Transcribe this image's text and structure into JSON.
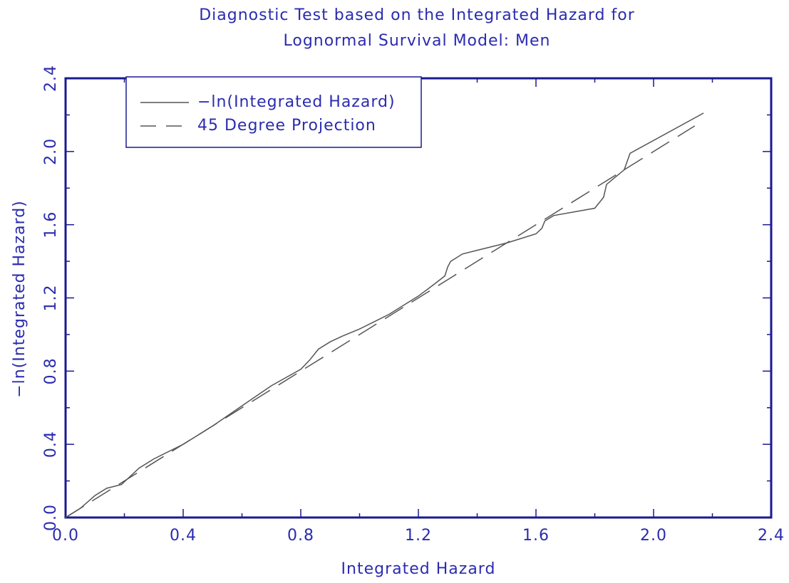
{
  "chart_data": {
    "type": "line",
    "title": "Diagnostic Test based on the Integrated Hazard for",
    "subtitle": "Lognormal Survival Model: Men",
    "x_label": "Integrated Hazard",
    "y_label": "−ln(Integrated Hazard)",
    "xlim": [
      0,
      2.4
    ],
    "ylim": [
      0,
      2.4
    ],
    "xticks": [
      {
        "value": 0,
        "label": "0.0"
      },
      {
        "value": 0.4,
        "label": "0.4"
      },
      {
        "value": 0.8,
        "label": "0.8"
      },
      {
        "value": 1.2,
        "label": "1.2"
      },
      {
        "value": 1.6,
        "label": "1.6"
      },
      {
        "value": 2.0,
        "label": "2.0"
      },
      {
        "value": 2.4,
        "label": "2.4"
      }
    ],
    "yticks": [
      {
        "value": 0,
        "label": "0.0"
      },
      {
        "value": 0.4,
        "label": "0.4"
      },
      {
        "value": 0.8,
        "label": "0.8"
      },
      {
        "value": 1.2,
        "label": "1.2"
      },
      {
        "value": 1.6,
        "label": "1.6"
      },
      {
        "value": 2.0,
        "label": "2.0"
      },
      {
        "value": 2.4,
        "label": "2.4"
      }
    ],
    "minor_ticks": [
      0.2,
      0.6,
      1.0,
      1.4,
      1.8,
      2.2
    ],
    "legend": "upper left",
    "series": [
      {
        "name": "−ln(Integrated Hazard)",
        "color": "#555555",
        "dash": false,
        "x": [
          0,
          0.05,
          0.1,
          0.14,
          0.19,
          0.25,
          0.3,
          0.4,
          0.5,
          0.6,
          0.7,
          0.8,
          0.83,
          0.86,
          0.9,
          0.94,
          1.0,
          1.05,
          1.1,
          1.2,
          1.25,
          1.29,
          1.3,
          1.31,
          1.35,
          1.4,
          1.5,
          1.6,
          1.62,
          1.63,
          1.66,
          1.8,
          1.83,
          1.84,
          1.87,
          1.9,
          1.92,
          2.17
        ],
        "values": [
          0,
          0.05,
          0.12,
          0.16,
          0.18,
          0.27,
          0.32,
          0.4,
          0.5,
          0.61,
          0.72,
          0.81,
          0.86,
          0.92,
          0.96,
          0.99,
          1.03,
          1.07,
          1.11,
          1.21,
          1.27,
          1.32,
          1.37,
          1.4,
          1.44,
          1.46,
          1.5,
          1.55,
          1.58,
          1.62,
          1.65,
          1.69,
          1.75,
          1.82,
          1.86,
          1.9,
          1.99,
          2.21
        ]
      },
      {
        "name": "45 Degree Projection",
        "color": "#555555",
        "dash": true,
        "x": [
          0,
          2.14
        ],
        "values": [
          0,
          2.14
        ]
      }
    ]
  }
}
